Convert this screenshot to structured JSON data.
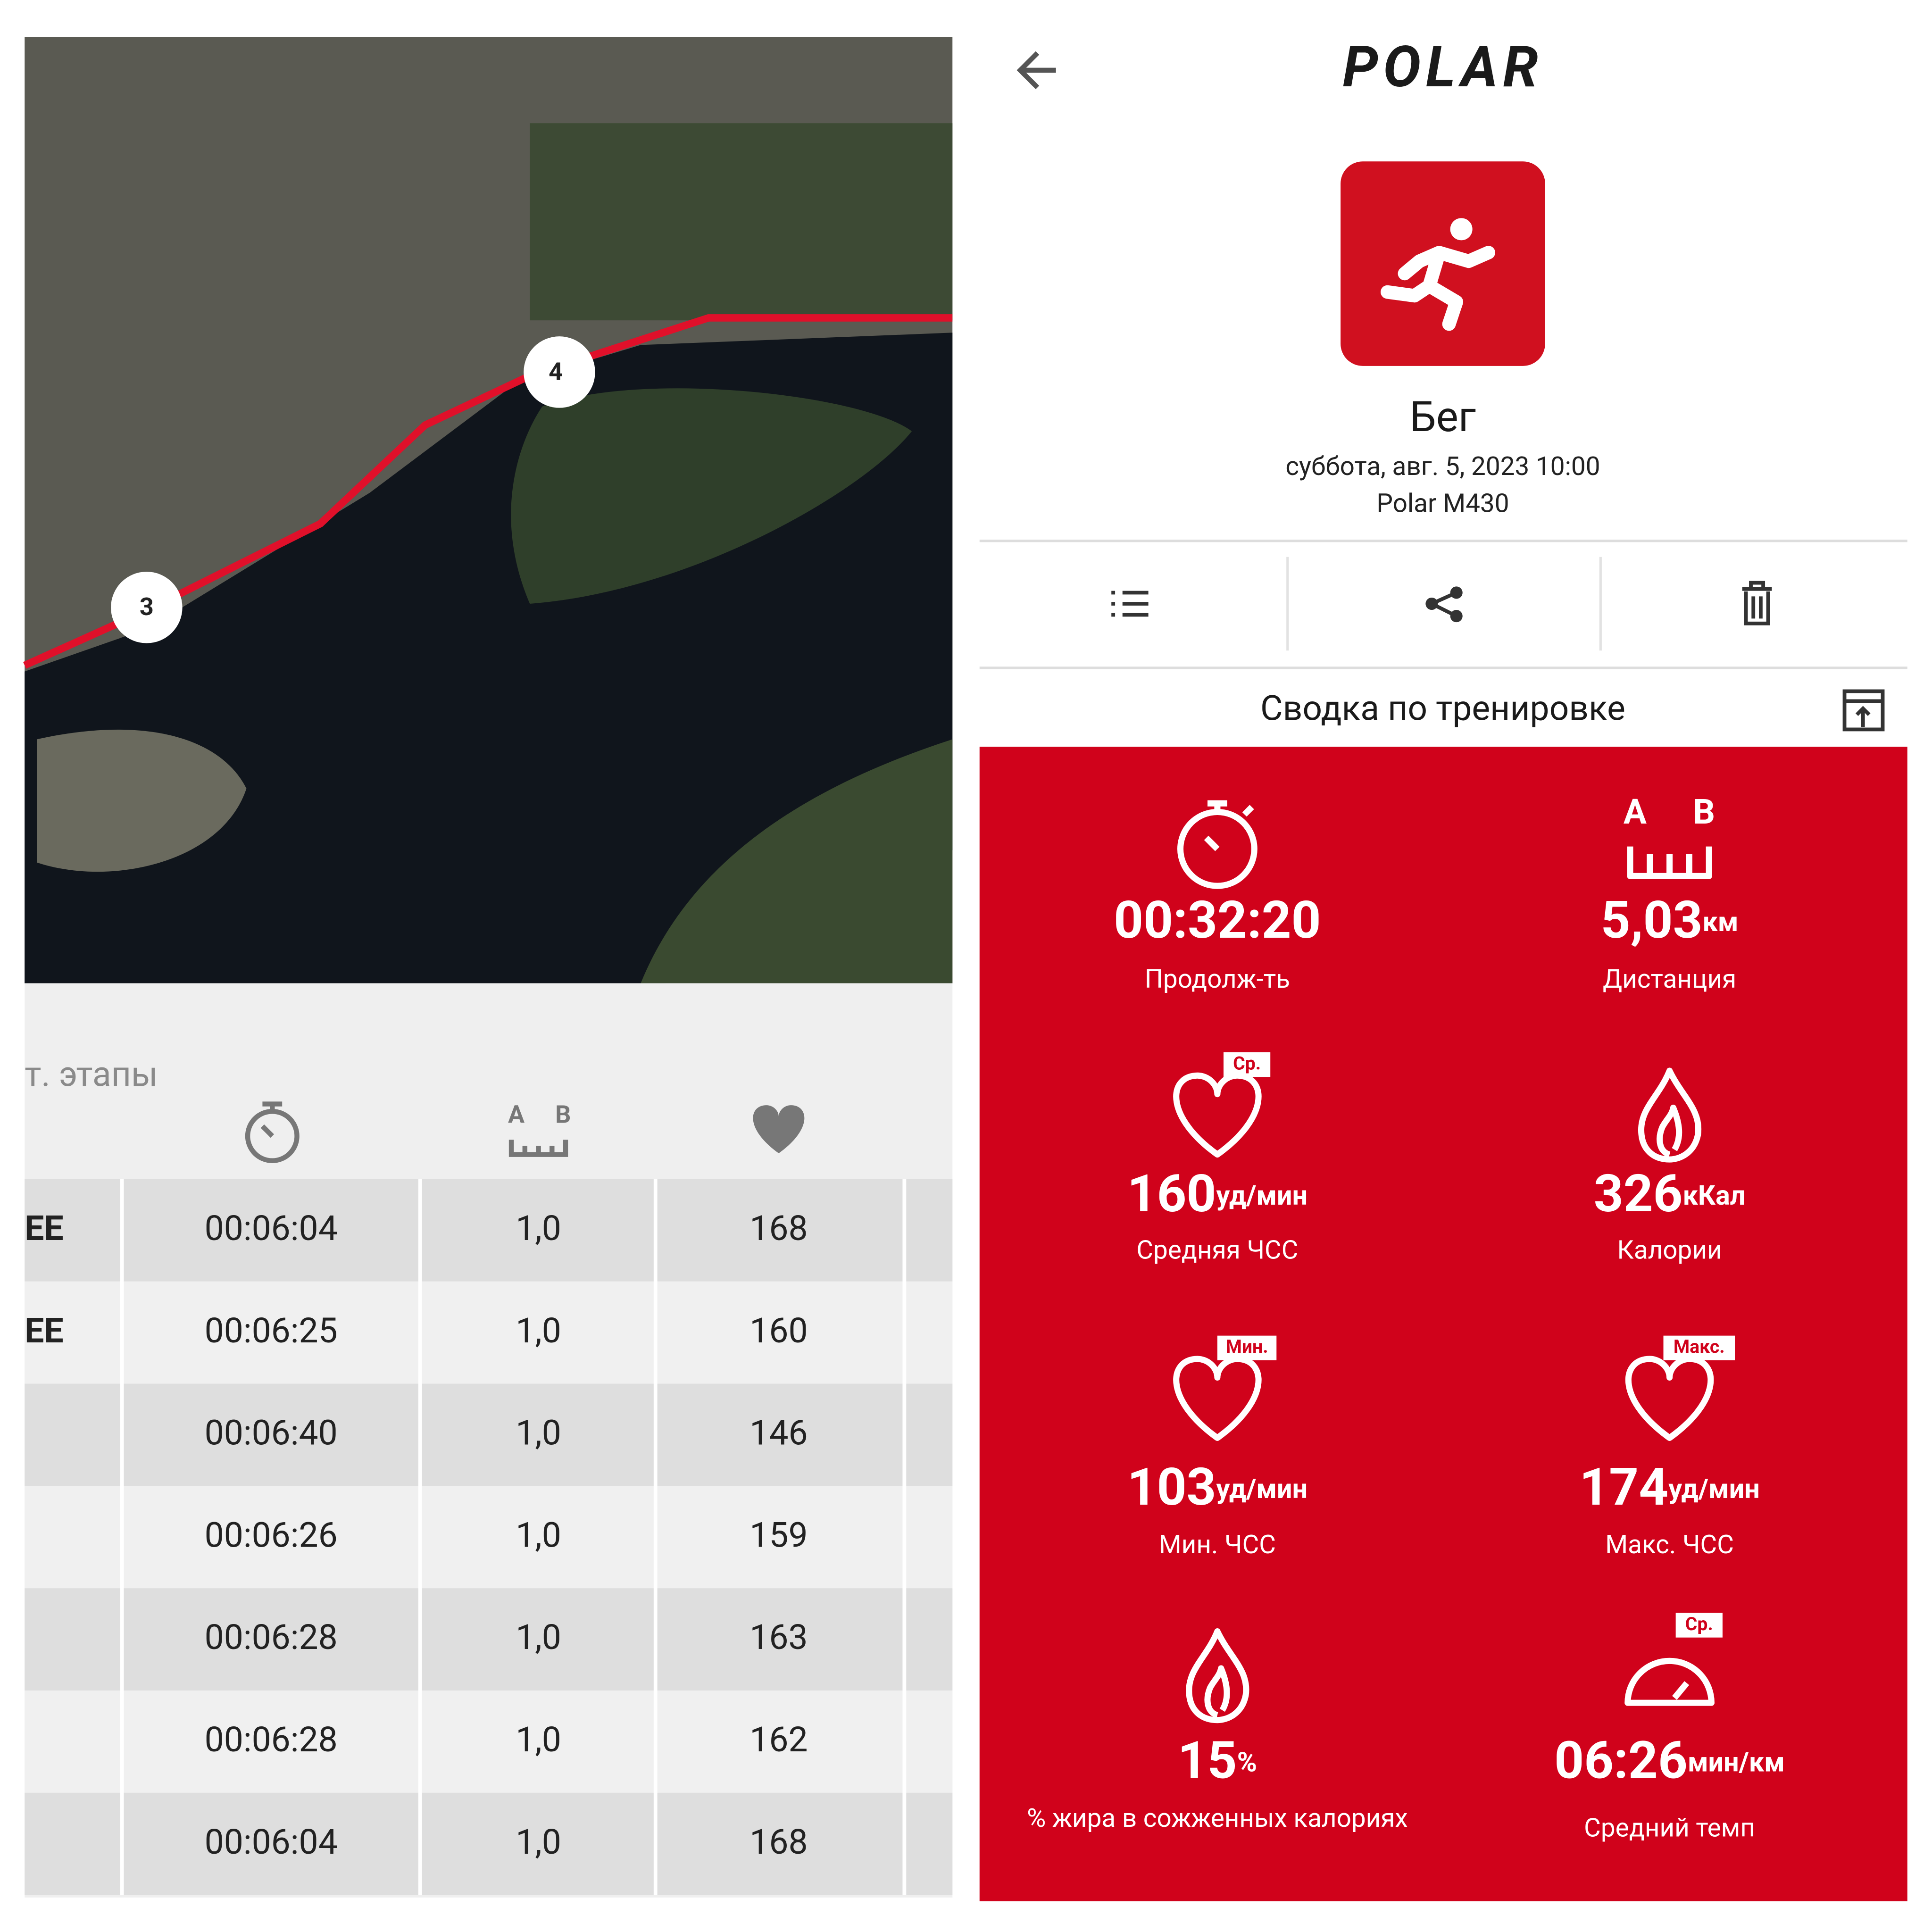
{
  "map": {
    "markers": [
      "3",
      "4"
    ]
  },
  "laps": {
    "title": "т. этапы",
    "distance_icon": [
      "A",
      "B"
    ],
    "rows": [
      {
        "label": "EE",
        "time": "00:06:04",
        "distance": "1,0",
        "heart_rate": "168"
      },
      {
        "label": "EE",
        "time": "00:06:25",
        "distance": "1,0",
        "heart_rate": "160"
      },
      {
        "time": "00:06:40",
        "distance": "1,0",
        "heart_rate": "146"
      },
      {
        "time": "00:06:26",
        "distance": "1,0",
        "heart_rate": "159"
      },
      {
        "time": "00:06:28",
        "distance": "1,0",
        "heart_rate": "163"
      },
      {
        "time": "00:06:28",
        "distance": "1,0",
        "heart_rate": "162"
      },
      {
        "time": "00:06:04",
        "distance": "1,0",
        "heart_rate": "168"
      }
    ]
  },
  "header": {
    "logo": "POLAR",
    "sport": "Бег",
    "date": "суббота, авг. 5, 2023 10:00",
    "device": "Polar M430"
  },
  "summary": {
    "title": "Сводка по тренировке",
    "stats": [
      {
        "value": "00:32:20",
        "label": "Продолж-ть"
      },
      {
        "value": "5,03",
        "unit": "км",
        "label": "Дистанция",
        "icon_text": [
          "A",
          "B"
        ]
      },
      {
        "value": "160",
        "unit": "уд/мин",
        "label": "Средняя ЧСС",
        "badge": "Ср."
      },
      {
        "value": "326",
        "unit": "кКал",
        "label": "Калории"
      },
      {
        "value": "103",
        "unit": "уд/мин",
        "label": "Мин. ЧСС",
        "badge": "Мин."
      },
      {
        "value": "174",
        "unit": "уд/мин",
        "label": "Макс. ЧСС",
        "badge": "Макс."
      },
      {
        "value": "15",
        "unit": "%",
        "label": "% жира в сожженных калориях"
      },
      {
        "value": "06:26",
        "unit": "мин/км",
        "label": "Средний темп",
        "badge": "Ср."
      }
    ]
  }
}
